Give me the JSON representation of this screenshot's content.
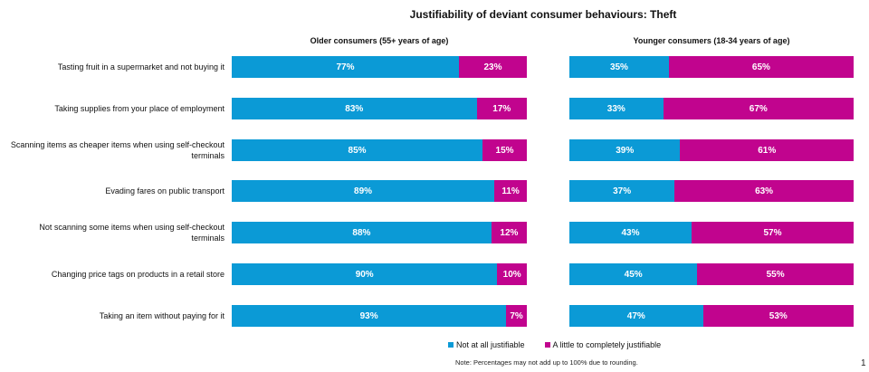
{
  "chart_data": {
    "type": "bar",
    "orientation": "horizontal",
    "stacked": true,
    "percent": true,
    "title": "Justifiability of deviant consumer behaviours: Theft",
    "categories": [
      "Tasting fruit in a supermarket and not buying it",
      "Taking supplies from your place of employment",
      "Scanning items as cheaper items when using self-checkout terminals",
      "Evading fares on public transport",
      "Not scanning some items when using self-checkout terminals",
      "Changing price tags on products in a retail store",
      "Taking an item without paying for it"
    ],
    "panels": [
      {
        "title": "Older consumers (55+ years of age)",
        "series": [
          {
            "name": "Not at all justifiable",
            "color": "#0b9ad6",
            "values": [
              77,
              83,
              85,
              89,
              88,
              90,
              93
            ]
          },
          {
            "name": "A little to completely justifiable",
            "color": "#c1048e",
            "values": [
              23,
              17,
              15,
              11,
              12,
              10,
              7
            ]
          }
        ]
      },
      {
        "title": "Younger consumers (18-34 years of age)",
        "series": [
          {
            "name": "Not at all justifiable",
            "color": "#0b9ad6",
            "values": [
              35,
              33,
              39,
              37,
              43,
              45,
              47
            ]
          },
          {
            "name": "A little to completely justifiable",
            "color": "#c1048e",
            "values": [
              65,
              67,
              61,
              63,
              57,
              55,
              53
            ]
          }
        ]
      }
    ],
    "xlim": [
      0,
      100
    ],
    "value_suffix": "%",
    "legend": [
      {
        "label": "Not at all justifiable",
        "color": "#0b9ad6"
      },
      {
        "label": "A little to completely justifiable",
        "color": "#c1048e"
      }
    ],
    "legend_position": "bottom",
    "grid": false,
    "note": "Note: Percentages may not add up to 100% due to rounding."
  },
  "page_number": "1"
}
